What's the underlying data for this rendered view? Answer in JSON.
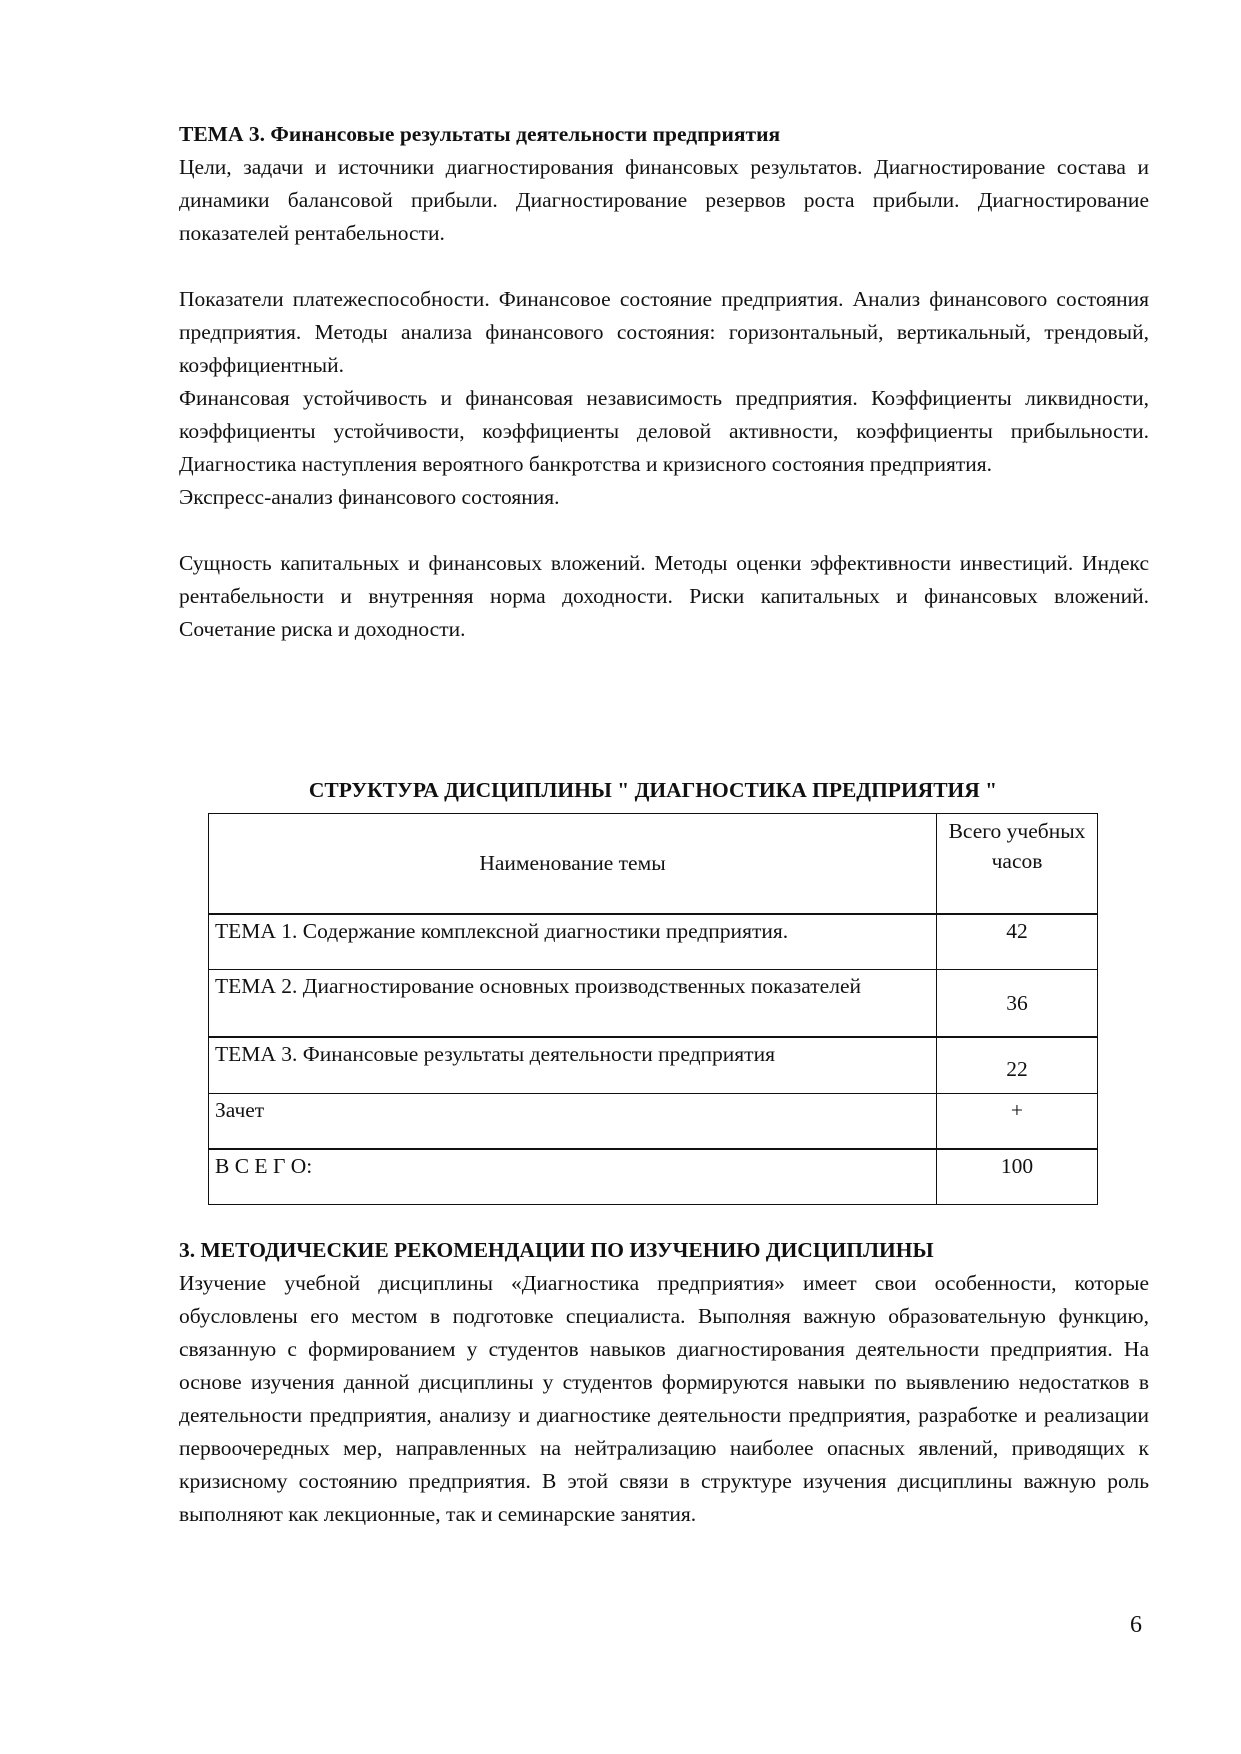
{
  "topic3": {
    "heading": "ТЕМА 3. Финансовые результаты деятельности предприятия",
    "paragraphs": [
      "Цели, задачи и источники диагностирования финансовых результатов. Диагностирование состава и динамики балансовой прибыли. Диагностирование резервов роста прибыли. Диагностирование показателей рентабельности.",
      "Показатели платежеспособности. Финансовое состояние предприятия. Анализ финансового состояния предприятия. Методы анализа финансового состояния: горизонтальный, вертикальный, трендовый, коэффициентный.",
      "Финансовая устойчивость и финансовая независимость предприятия. Коэффициенты ликвидности, коэффициенты устойчивости, коэффициенты деловой активности, коэффициенты прибыльности. Диагностика наступления вероятного банкротства и кризисного состояния предприятия.",
      "Экспресс-анализ финансового состояния.",
      "Сущность капитальных и финансовых вложений. Методы оценки эффективности инвестиций. Индекс рентабельности и внутренняя норма доходности. Риски капитальных и финансовых вложений. Сочетание риска и доходности."
    ]
  },
  "structure_table": {
    "title": "СТРУКТУРА ДИСЦИПЛИНЫ \" ДИАГНОСТИКА ПРЕДПРИЯТИЯ \"",
    "headers": [
      "Наименование темы",
      "Всего учебных часов"
    ],
    "rows": [
      {
        "name": "ТЕМА 1. Содержание комплексной диагностики предприятия.",
        "hours": "42"
      },
      {
        "name": "ТЕМА 2. Диагностирование основных производственных показателей",
        "hours": "36"
      },
      {
        "name": "ТЕМА 3. Финансовые результаты деятельности предприятия",
        "hours": "22"
      },
      {
        "name": "Зачет",
        "hours": "+"
      },
      {
        "name": "В С Е Г О:",
        "hours": "100"
      }
    ]
  },
  "section3": {
    "heading": "3. МЕТОДИЧЕСКИЕ РЕКОМЕНДАЦИИ ПО ИЗУЧЕНИЮ ДИСЦИПЛИНЫ",
    "paragraph": "Изучение учебной дисциплины «Диагностика предприятия» имеет свои особенности, которые обусловлены его местом в подготовке специалиста. Выполняя важную образовательную функцию, связанную с формированием у студентов навыков диагностирования деятельности предприятия. На основе изучения данной дисциплины у студентов формируются навыки по выявлению недостатков в деятельности предприятия, анализу и диагностике деятельности предприятия, разработке и реализации первоочередных мер, направленных на нейтрализацию наиболее опасных явлений, приводящих к кризисному состоянию предприятия. В этой связи в структуре изучения дисциплины важную роль выполняют как лекционные, так и семинарские занятия."
  },
  "page_number": "6"
}
